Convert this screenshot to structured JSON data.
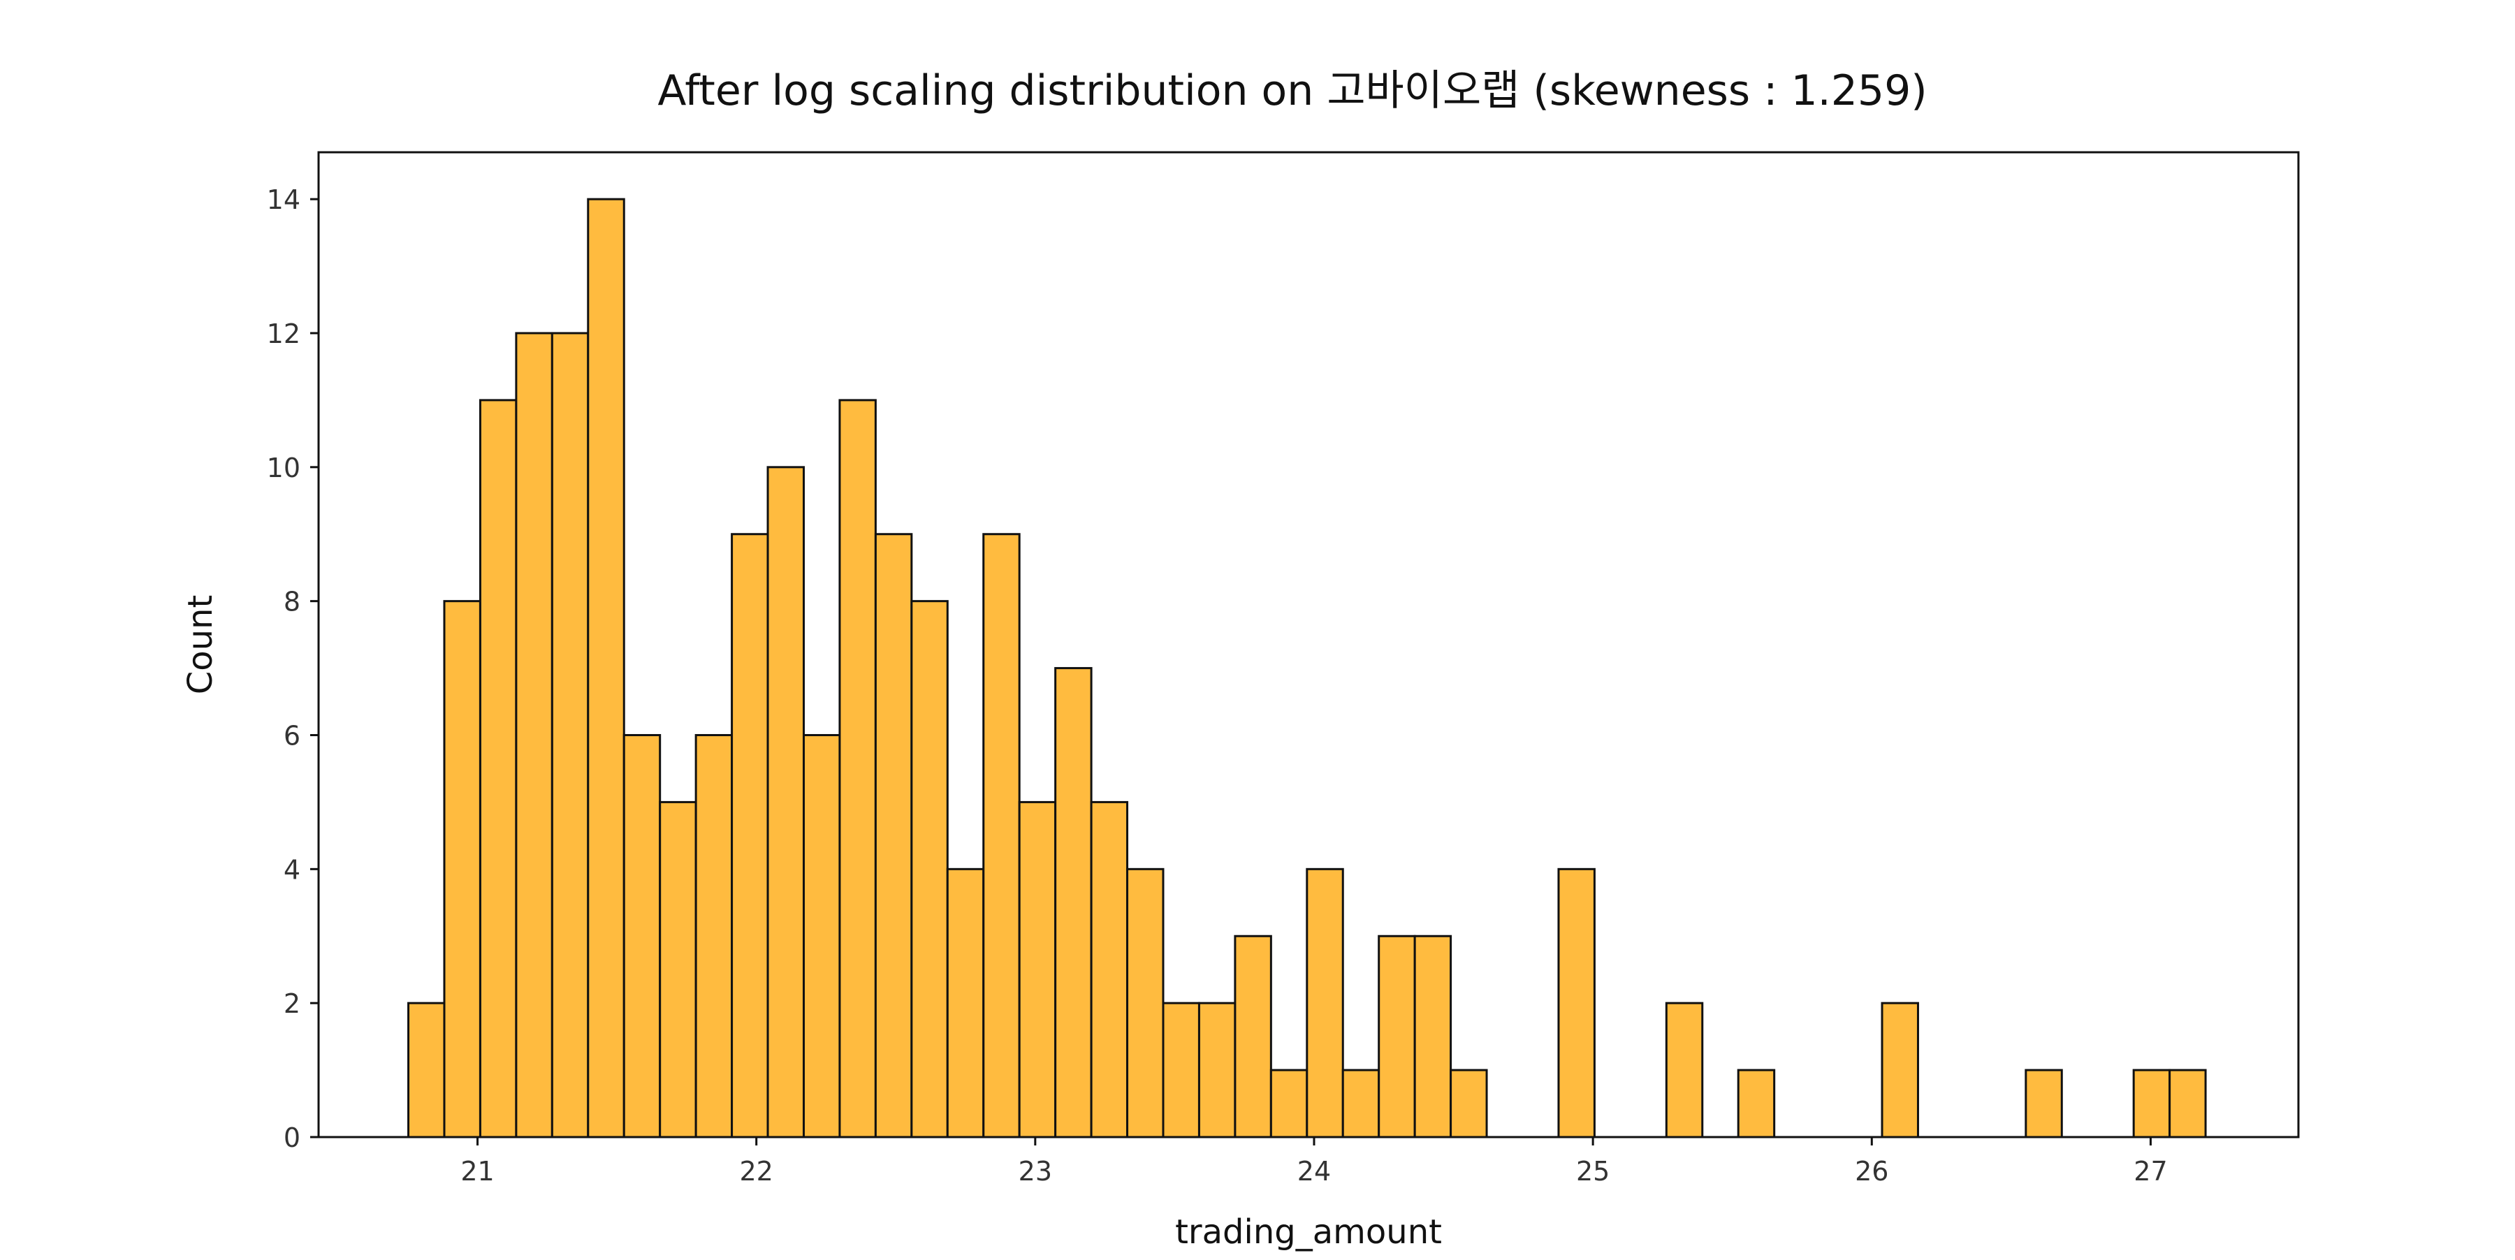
{
  "chart_data": {
    "type": "bar",
    "title": "After log scaling distribution on 고바이오랩 (skewness : 1.259)",
    "xlabel": "trading_amount",
    "ylabel": "Count",
    "xlim": [
      20.43,
      27.53
    ],
    "ylim": [
      0,
      14.7
    ],
    "xticks": [
      21,
      22,
      23,
      24,
      25,
      26,
      27
    ],
    "yticks": [
      0,
      2,
      4,
      6,
      8,
      10,
      12,
      14
    ],
    "bin_start": 20.752,
    "bin_width": 0.1289,
    "values": [
      2,
      8,
      11,
      12,
      12,
      14,
      6,
      5,
      6,
      9,
      10,
      6,
      11,
      9,
      8,
      4,
      9,
      5,
      7,
      5,
      4,
      2,
      2,
      3,
      1,
      4,
      1,
      3,
      3,
      1,
      0,
      0,
      4,
      0,
      0,
      2,
      0,
      1,
      0,
      0,
      0,
      2,
      0,
      0,
      0,
      1,
      0,
      0,
      1,
      1
    ],
    "bar_color": "#FFBB3F",
    "edge_color": "#111111",
    "grid": false,
    "legend": "none"
  }
}
